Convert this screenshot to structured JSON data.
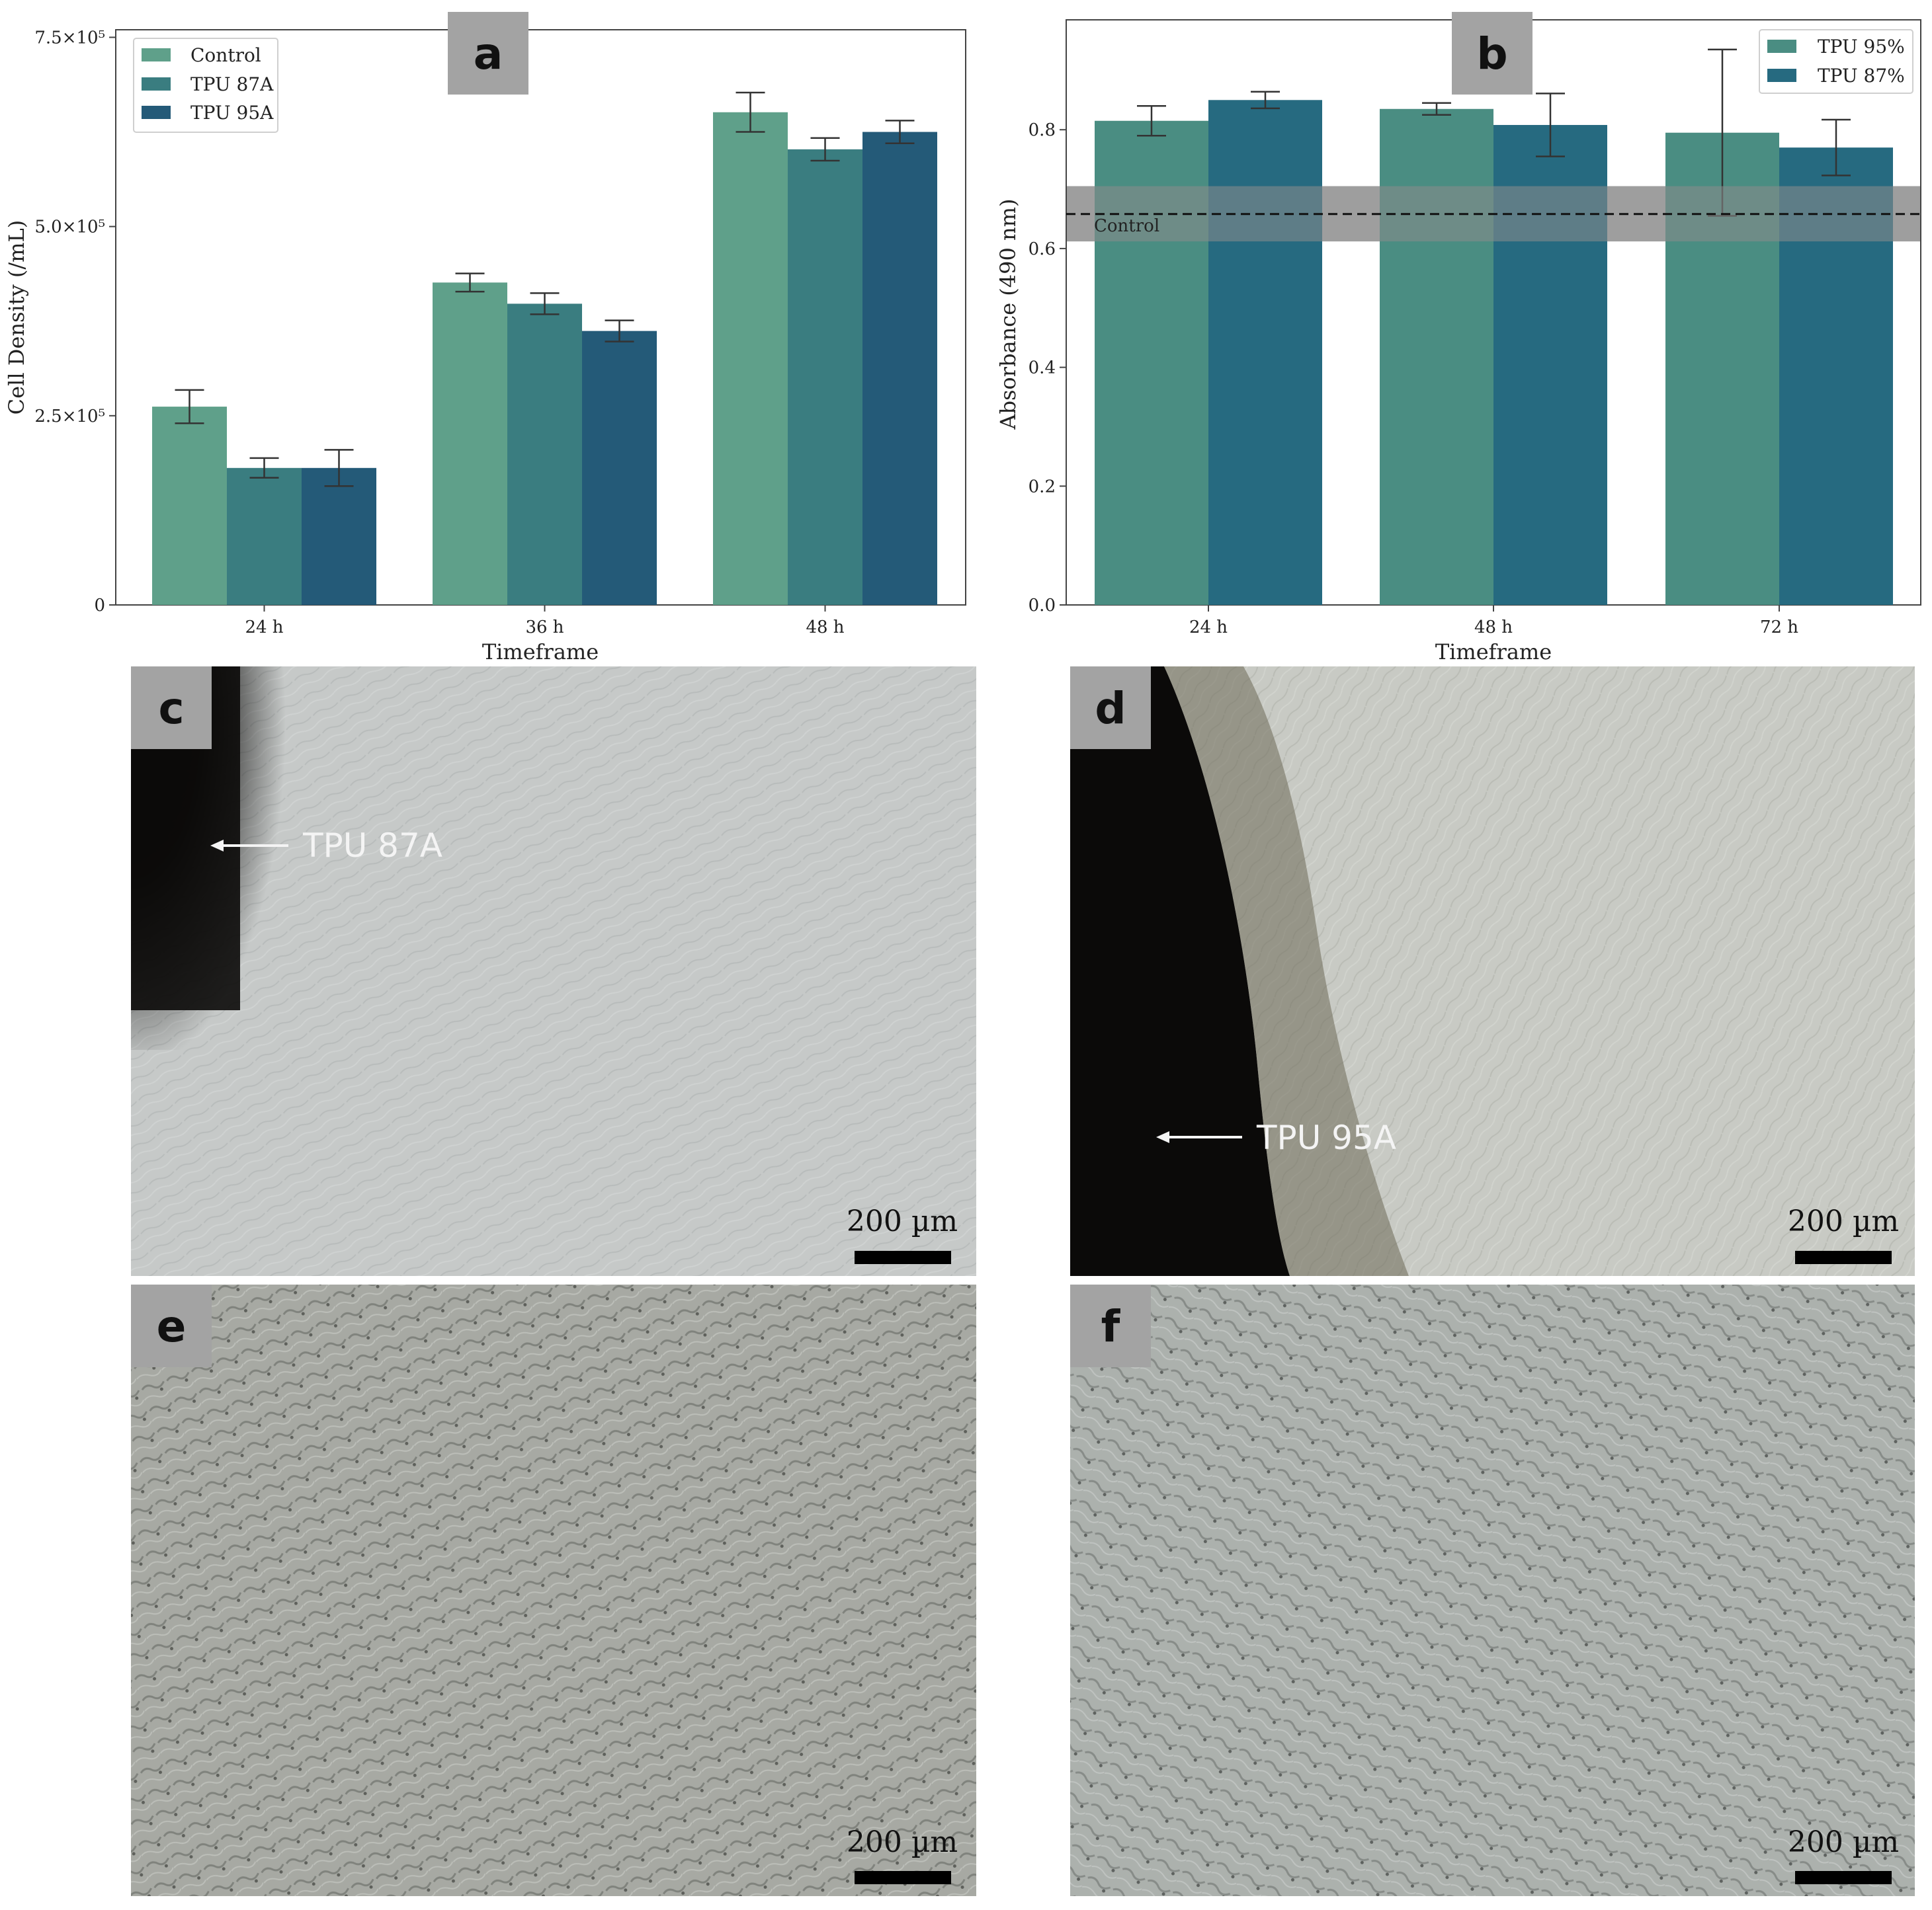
{
  "figure": {
    "panels": {
      "a": "a",
      "b": "b",
      "c": "c",
      "d": "d",
      "e": "e",
      "f": "f"
    },
    "annotations": {
      "c_arrow_label": "TPU 87A",
      "d_arrow_label": "TPU 95A"
    },
    "scale_bar_label": "200 µm",
    "colors": {
      "control": "#5fa08a",
      "tpu87a": "#3a7d80",
      "tpu95a": "#245a78",
      "tpu95pct": "#4a8d82",
      "tpu87pct": "#266a80"
    }
  },
  "chart_data": [
    {
      "type": "bar",
      "panel": "a",
      "categories": [
        "24 h",
        "36 h",
        "48 h"
      ],
      "series": [
        {
          "name": "Control",
          "values": [
            262000,
            426000,
            651000
          ],
          "errors": [
            22000,
            12000,
            26000
          ]
        },
        {
          "name": "TPU 87A",
          "values": [
            181000,
            398000,
            602000
          ],
          "errors": [
            13000,
            14000,
            15000
          ]
        },
        {
          "name": "TPU 95A",
          "values": [
            181000,
            362000,
            625000
          ],
          "errors": [
            24000,
            14000,
            15000
          ]
        }
      ],
      "xlabel": "Timeframe",
      "ylabel": "Cell Density (/mL)",
      "ylim": [
        0,
        760000
      ],
      "yticks": [
        "0",
        "2.5×10⁵",
        "5.0×10⁵",
        "7.5×10⁵"
      ],
      "ytick_values": [
        0,
        250000,
        500000,
        750000
      ],
      "legend": "top-left",
      "grid": false
    },
    {
      "type": "bar",
      "panel": "b",
      "categories": [
        "24 h",
        "48 h",
        "72 h"
      ],
      "series": [
        {
          "name": "TPU 95%",
          "values": [
            0.815,
            0.835,
            0.795
          ],
          "errors": [
            0.025,
            0.01,
            0.14
          ]
        },
        {
          "name": "TPU 87%",
          "values": [
            0.85,
            0.808,
            0.77
          ],
          "errors": [
            0.014,
            0.053,
            0.047
          ]
        }
      ],
      "reference": {
        "label": "Control",
        "value": 0.658,
        "band": [
          0.612,
          0.705
        ]
      },
      "xlabel": "Timeframe",
      "ylabel": "Absorbance (490 nm)",
      "ylim": [
        0,
        0.985
      ],
      "yticks": [
        "0.0",
        "0.2",
        "0.4",
        "0.6",
        "0.8"
      ],
      "ytick_values": [
        0,
        0.2,
        0.4,
        0.6,
        0.8
      ],
      "legend": "top-right",
      "grid": false
    }
  ]
}
